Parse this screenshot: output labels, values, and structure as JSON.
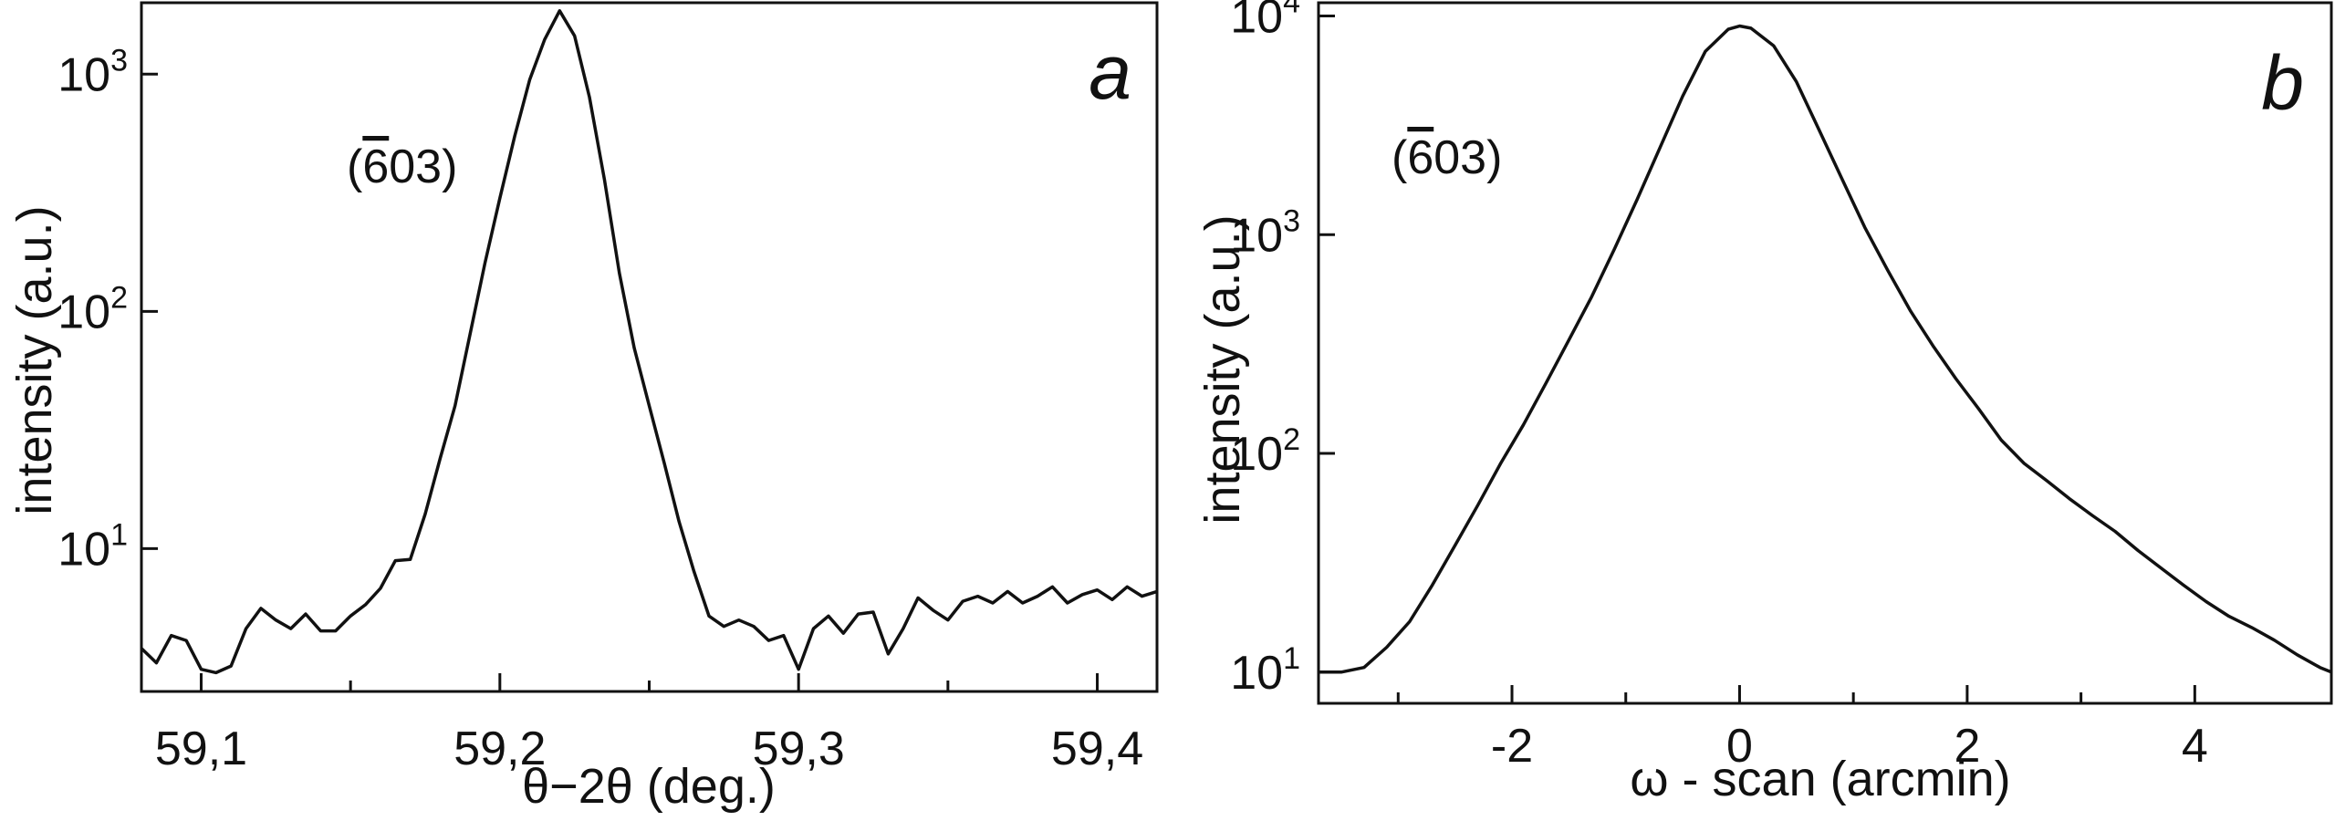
{
  "chart_data": [
    {
      "type": "line",
      "panel_label": "a",
      "annotation": "(6̅ 03)",
      "annotation_parts": {
        "bar_digit": "6",
        "rest": "03",
        "open": "(",
        "close": ")"
      },
      "xlabel": "θ−2θ (deg.)",
      "ylabel": "intensity (a.u.)",
      "xlim": [
        59.08,
        59.42
      ],
      "ylim": [
        2.5,
        2000
      ],
      "yscale": "log",
      "x_ticks_labeled": [
        {
          "value": 59.1,
          "label": "59,1"
        },
        {
          "value": 59.2,
          "label": "59,2"
        },
        {
          "value": 59.3,
          "label": "59,3"
        },
        {
          "value": 59.4,
          "label": "59,4"
        }
      ],
      "x_ticks_minor": [
        59.15,
        59.25,
        59.35
      ],
      "y_ticks_labeled": [
        {
          "value": 10,
          "base": "10",
          "exp": "1"
        },
        {
          "value": 100,
          "base": "10",
          "exp": "2"
        },
        {
          "value": 1000,
          "base": "10",
          "exp": "3"
        }
      ],
      "series": [
        {
          "x": [
            59.08,
            59.085,
            59.09,
            59.095,
            59.1,
            59.105,
            59.11,
            59.115,
            59.12,
            59.125,
            59.13,
            59.135,
            59.14,
            59.145,
            59.15,
            59.155,
            59.16,
            59.165,
            59.17,
            59.175,
            59.18,
            59.185,
            59.19,
            59.195,
            59.2,
            59.205,
            59.21,
            59.215,
            59.22,
            59.225,
            59.23,
            59.235,
            59.24,
            59.245,
            59.25,
            59.255,
            59.26,
            59.265,
            59.27,
            59.275,
            59.28,
            59.285,
            59.29,
            59.295,
            59.3,
            59.305,
            59.31,
            59.315,
            59.32,
            59.325,
            59.33,
            59.335,
            59.34,
            59.345,
            59.35,
            59.355,
            59.36,
            59.365,
            59.37,
            59.375,
            59.38,
            59.385,
            59.39,
            59.395,
            59.4,
            59.405,
            59.41,
            59.415,
            59.42
          ],
          "y": [
            3.8,
            3.3,
            4.3,
            4.1,
            3.1,
            3.0,
            3.2,
            4.6,
            5.6,
            5.0,
            4.6,
            5.3,
            4.5,
            4.5,
            5.2,
            5.8,
            6.8,
            8.9,
            9.0,
            14.0,
            24.0,
            40.0,
            80.0,
            160.0,
            300.0,
            550.0,
            950.0,
            1400.0,
            1850.0,
            1450.0,
            800.0,
            360.0,
            145.0,
            70.0,
            40.0,
            23.0,
            13.0,
            8.0,
            5.2,
            4.7,
            5.0,
            4.7,
            4.1,
            4.3,
            3.1,
            4.6,
            5.2,
            4.4,
            5.3,
            5.4,
            3.6,
            4.6,
            6.2,
            5.5,
            5.0,
            6.0,
            6.3,
            5.9,
            6.6,
            5.9,
            6.3,
            6.9,
            5.9,
            6.4,
            6.7,
            6.1,
            6.9,
            6.3,
            6.6
          ]
        }
      ]
    },
    {
      "type": "line",
      "panel_label": "b",
      "annotation": "(6̅ 03)",
      "annotation_parts": {
        "bar_digit": "6",
        "rest": "03",
        "open": "(",
        "close": ")"
      },
      "xlabel": "ω - scan (arcmin)",
      "ylabel": "intensity (a.u.)",
      "xlim": [
        -3.7,
        5.2
      ],
      "ylim": [
        7.2,
        11500
      ],
      "yscale": "log",
      "x_ticks_labeled": [
        {
          "value": -2,
          "label": "-2"
        },
        {
          "value": 0,
          "label": "0"
        },
        {
          "value": 2,
          "label": "2"
        },
        {
          "value": 4,
          "label": "4"
        }
      ],
      "x_ticks_minor": [
        -3,
        -1,
        1,
        3
      ],
      "y_ticks_labeled": [
        {
          "value": 10,
          "base": "10",
          "exp": "1"
        },
        {
          "value": 100,
          "base": "10",
          "exp": "2"
        },
        {
          "value": 1000,
          "base": "10",
          "exp": "3"
        },
        {
          "value": 10000,
          "base": "10",
          "exp": "4"
        }
      ],
      "series": [
        {
          "x": [
            -3.7,
            -3.5,
            -3.3,
            -3.1,
            -2.9,
            -2.7,
            -2.5,
            -2.3,
            -2.1,
            -1.9,
            -1.7,
            -1.5,
            -1.3,
            -1.1,
            -0.9,
            -0.7,
            -0.5,
            -0.3,
            -0.1,
            0.0,
            0.1,
            0.3,
            0.5,
            0.7,
            0.9,
            1.1,
            1.3,
            1.5,
            1.7,
            1.9,
            2.1,
            2.3,
            2.5,
            2.7,
            2.9,
            3.1,
            3.3,
            3.5,
            3.7,
            3.9,
            4.1,
            4.3,
            4.5,
            4.7,
            4.9,
            5.1,
            5.2
          ],
          "y": [
            10,
            10,
            10.5,
            13,
            17,
            25,
            38,
            58,
            90,
            135,
            210,
            330,
            520,
            860,
            1450,
            2500,
            4300,
            6900,
            8700,
            9000,
            8800,
            7300,
            5000,
            3000,
            1800,
            1080,
            690,
            450,
            310,
            220,
            160,
            115,
            90,
            75,
            62,
            52,
            44,
            36,
            30,
            25,
            21,
            18,
            16,
            14,
            12,
            10.5,
            10
          ]
        }
      ]
    }
  ]
}
